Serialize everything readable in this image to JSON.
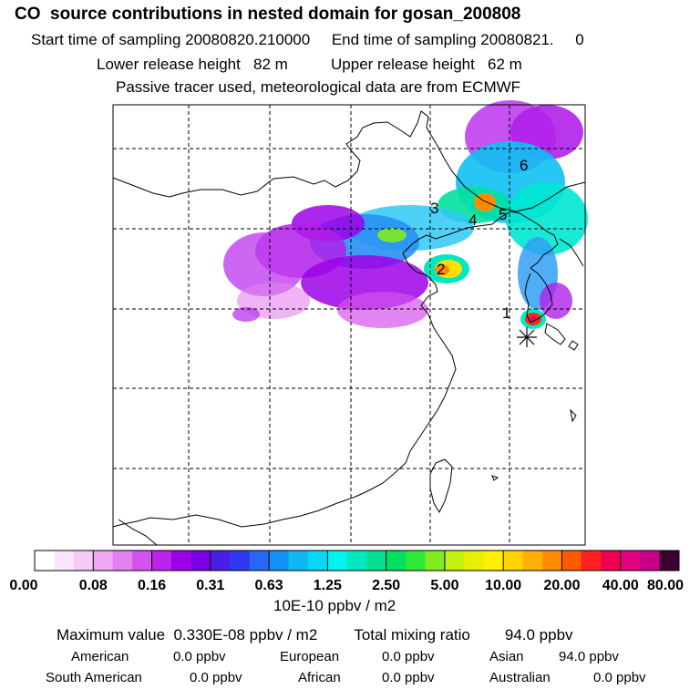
{
  "header": {
    "title": "CO  source contributions in nested domain for gosan_200808",
    "sampling": "Start time of sampling 20080820.210000     End time of sampling 20080821.     0",
    "release": "Lower release height   82 m          Upper release height   62 m",
    "note": "Passive tracer used, meteorological data are from ECMWF"
  },
  "chart_data": {
    "type": "heatmap",
    "title": "CO  source contributions in nested domain for gosan_200808",
    "colorbar": {
      "tick_labels": [
        "0.00",
        "0.08",
        "0.16",
        "0.31",
        "0.63",
        "1.25",
        "2.50",
        "5.00",
        "10.00",
        "20.00",
        "40.00",
        "80.00"
      ],
      "unit": "10E-10 ppbv / m2"
    },
    "annotations": [
      "1",
      "2",
      "3",
      "4",
      "5",
      "6"
    ]
  },
  "summary": {
    "max_label": "Maximum value  0.330E-08 ppbv / m2",
    "total_label": "Total mixing ratio",
    "total_value": "94.0 ppbv",
    "continents": [
      {
        "name": "American",
        "value": "0.0 ppbv"
      },
      {
        "name": "European",
        "value": "0.0 ppbv"
      },
      {
        "name": "Asian",
        "value": "94.0 ppbv"
      },
      {
        "name": "South American",
        "value": "0.0 ppbv"
      },
      {
        "name": "African",
        "value": "0.0 ppbv"
      },
      {
        "name": "Australian",
        "value": "0.0 ppbv"
      }
    ]
  }
}
